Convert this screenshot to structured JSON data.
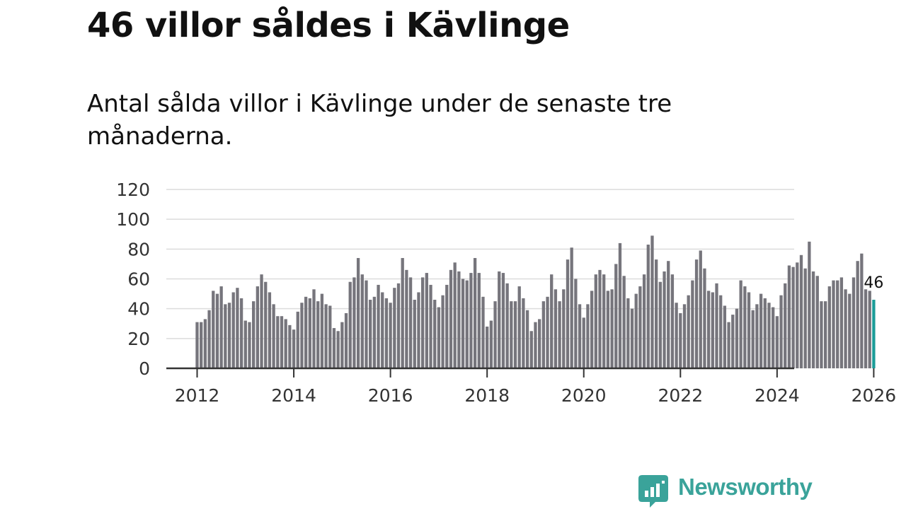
{
  "title": "46 villor såldes i Kävlinge",
  "subtitle": "Antal sålda villor i Kävlinge under de senaste tre månaderna.",
  "brand": {
    "name": "Newsworthy",
    "color": "#3aa39a"
  },
  "chart_data": {
    "type": "bar",
    "title": "46 villor såldes i Kävlinge",
    "xlabel": "",
    "ylabel": "",
    "ylim": [
      0,
      120
    ],
    "yticks": [
      "0",
      "20",
      "40",
      "60",
      "80",
      "100",
      "120"
    ],
    "xticks": [
      {
        "label": "2012",
        "month_index": 0
      },
      {
        "label": "2014",
        "month_index": 24
      },
      {
        "label": "2016",
        "month_index": 48
      },
      {
        "label": "2018",
        "month_index": 72
      },
      {
        "label": "2020",
        "month_index": 96
      },
      {
        "label": "2022",
        "month_index": 120
      },
      {
        "label": "2024",
        "month_index": 144
      },
      {
        "label": "2026",
        "month_index": 168
      }
    ],
    "start": "2012-01",
    "bar_color": "#76757c",
    "highlight_color": "#1a9c97",
    "highlight_label": "46",
    "values": [
      31,
      31,
      33,
      39,
      52,
      50,
      55,
      43,
      44,
      51,
      54,
      47,
      32,
      31,
      45,
      55,
      63,
      58,
      51,
      43,
      35,
      35,
      33,
      29,
      26,
      38,
      44,
      48,
      47,
      53,
      45,
      50,
      43,
      42,
      27,
      25,
      31,
      37,
      58,
      61,
      74,
      63,
      59,
      46,
      48,
      56,
      51,
      47,
      44,
      54,
      57,
      74,
      66,
      61,
      46,
      51,
      61,
      64,
      56,
      46,
      41,
      49,
      56,
      66,
      71,
      65,
      60,
      59,
      64,
      74,
      64,
      48,
      28,
      32,
      45,
      65,
      64,
      57,
      45,
      45,
      55,
      47,
      39,
      25,
      31,
      33,
      45,
      48,
      63,
      53,
      45,
      53,
      73,
      81,
      60,
      43,
      34,
      43,
      52,
      63,
      66,
      63,
      52,
      53,
      70,
      84,
      62,
      47,
      40,
      50,
      55,
      63,
      83,
      89,
      73,
      58,
      65,
      72,
      63,
      44,
      37,
      43,
      49,
      59,
      73,
      79,
      67,
      52,
      51,
      57,
      49,
      42,
      31,
      36,
      40,
      59,
      55,
      51,
      39,
      43,
      50,
      47,
      44,
      41,
      35,
      49,
      57,
      69,
      68,
      71,
      76,
      67,
      85,
      65,
      62,
      45,
      45,
      55,
      59,
      59,
      61,
      53,
      50,
      61,
      72,
      77,
      53,
      52,
      46
    ]
  }
}
